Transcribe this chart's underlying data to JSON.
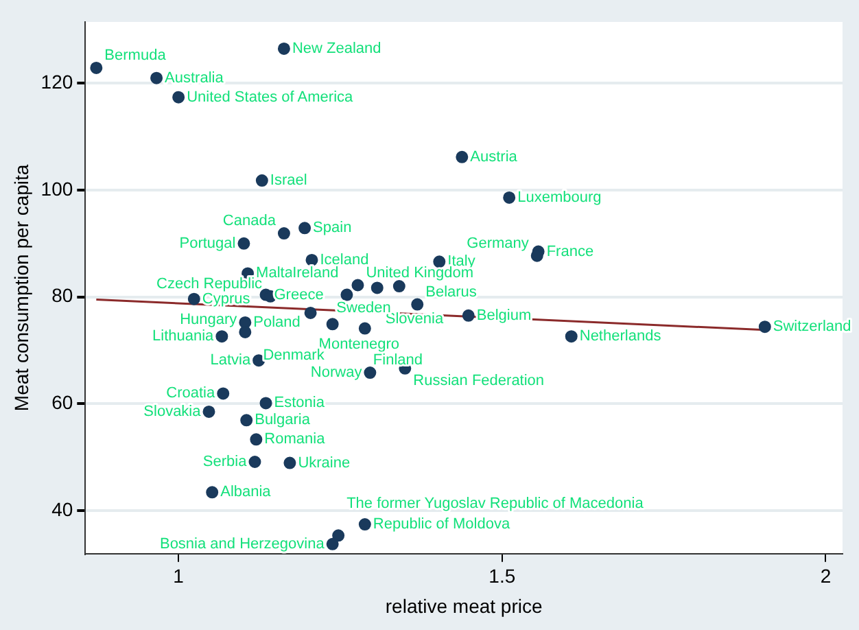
{
  "chart_data": {
    "type": "scatter",
    "xlabel": "relative meat price",
    "ylabel": "Meat consumption per capita",
    "xlim": [
      0.856,
      2.026
    ],
    "ylim": [
      31.9,
      131.5
    ],
    "xticks": [
      1,
      1.5,
      2
    ],
    "yticks": [
      40,
      60,
      80,
      100,
      120
    ],
    "grid": "y",
    "legend": false,
    "marker": "circle",
    "series": [
      {
        "color": "#1a3a5c",
        "x": [
          0.873,
          0.966,
          1.0,
          1.163,
          1.129,
          1.438,
          1.511,
          1.195,
          1.163,
          1.101,
          1.206,
          1.403,
          1.556,
          1.554,
          1.107,
          1.277,
          1.307,
          1.341,
          1.024,
          1.135,
          1.142,
          1.26,
          1.369,
          1.204,
          1.448,
          1.906,
          1.607,
          1.103,
          1.103,
          1.067,
          1.238,
          1.288,
          1.124,
          1.35,
          1.296,
          1.069,
          1.135,
          1.047,
          1.105,
          1.12,
          1.118,
          1.172,
          1.052,
          1.288,
          1.247,
          1.238
        ],
        "values": [
          122.9,
          121.0,
          117.4,
          126.5,
          101.8,
          106.2,
          98.6,
          92.9,
          91.9,
          90.0,
          86.9,
          86.6,
          88.5,
          87.7,
          84.4,
          82.2,
          81.7,
          82.0,
          79.6,
          80.4,
          80.1,
          80.4,
          78.6,
          77.0,
          76.5,
          74.4,
          72.6,
          75.2,
          73.4,
          72.6,
          74.9,
          74.1,
          68.1,
          66.6,
          65.8,
          61.9,
          60.1,
          58.5,
          56.9,
          53.3,
          49.1,
          48.9,
          43.4,
          37.4,
          35.3,
          33.7
        ]
      },
      {
        "type": "line",
        "marker": "none",
        "color": "#8b2a2a",
        "x": [
          0.873,
          1.906
        ],
        "values": [
          79.5,
          73.8
        ]
      }
    ],
    "annotations": [
      {
        "text": "Bermuda",
        "x": 0.873,
        "y": 122.9
      },
      {
        "text": "Australia",
        "x": 0.966,
        "y": 121.0
      },
      {
        "text": "United States of America",
        "x": 1.0,
        "y": 117.4
      },
      {
        "text": "New Zealand",
        "x": 1.163,
        "y": 126.5
      },
      {
        "text": "Israel",
        "x": 1.129,
        "y": 101.8
      },
      {
        "text": "Austria",
        "x": 1.438,
        "y": 106.2
      },
      {
        "text": "Luxembourg",
        "x": 1.511,
        "y": 98.6
      },
      {
        "text": "Spain",
        "x": 1.195,
        "y": 92.9
      },
      {
        "text": "Canada",
        "x": 1.163,
        "y": 91.9
      },
      {
        "text": "Portugal",
        "x": 1.101,
        "y": 90.0
      },
      {
        "text": "Iceland",
        "x": 1.206,
        "y": 86.9
      },
      {
        "text": "Italy",
        "x": 1.403,
        "y": 86.6
      },
      {
        "text": "France",
        "x": 1.556,
        "y": 88.5
      },
      {
        "text": "Germany",
        "x": 1.554,
        "y": 87.7
      },
      {
        "text": "Malta",
        "x": 1.107,
        "y": 84.4
      },
      {
        "text": "United Kingdom",
        "x": 1.277,
        "y": 82.2
      },
      {
        "text": "Slovenia",
        "x": 1.307,
        "y": 81.7
      },
      {
        "text": "Sweden",
        "x": 1.341,
        "y": 82.0
      },
      {
        "text": "Cyprus",
        "x": 1.024,
        "y": 79.6
      },
      {
        "text": "Greece",
        "x": 1.135,
        "y": 80.4
      },
      {
        "text": "Czech Republic",
        "x": 1.142,
        "y": 80.1
      },
      {
        "text": "Ireland",
        "x": 1.26,
        "y": 80.4
      },
      {
        "text": "Belarus",
        "x": 1.369,
        "y": 78.6
      },
      {
        "text": "Montenegro",
        "x": 1.204,
        "y": 77.0
      },
      {
        "text": "Belgium",
        "x": 1.448,
        "y": 76.5
      },
      {
        "text": "Switzerland",
        "x": 1.906,
        "y": 74.4
      },
      {
        "text": "Netherlands",
        "x": 1.607,
        "y": 72.6
      },
      {
        "text": "Poland",
        "x": 1.103,
        "y": 75.2
      },
      {
        "text": "Hungary",
        "x": 1.103,
        "y": 73.4
      },
      {
        "text": "Lithuania",
        "x": 1.067,
        "y": 72.6
      },
      {
        "text": "Denmark",
        "x": 1.238,
        "y": 74.9
      },
      {
        "text": "Finland",
        "x": 1.288,
        "y": 74.1
      },
      {
        "text": "Latvia",
        "x": 1.124,
        "y": 68.1
      },
      {
        "text": "Russian Federation",
        "x": 1.35,
        "y": 66.6
      },
      {
        "text": "Norway",
        "x": 1.296,
        "y": 65.8
      },
      {
        "text": "Croatia",
        "x": 1.069,
        "y": 61.9
      },
      {
        "text": "Estonia",
        "x": 1.135,
        "y": 60.1
      },
      {
        "text": "Slovakia",
        "x": 1.047,
        "y": 58.5
      },
      {
        "text": "Bulgaria",
        "x": 1.105,
        "y": 56.9
      },
      {
        "text": "Romania",
        "x": 1.12,
        "y": 53.3
      },
      {
        "text": "Serbia",
        "x": 1.118,
        "y": 49.1
      },
      {
        "text": "Ukraine",
        "x": 1.172,
        "y": 48.9
      },
      {
        "text": "Albania",
        "x": 1.052,
        "y": 43.4
      },
      {
        "text": "Republic of Moldova",
        "x": 1.288,
        "y": 37.4
      },
      {
        "text": "The former Yugoslav Republic of Macedonia",
        "x": 1.247,
        "y": 35.3
      },
      {
        "text": "Bosnia and Herzegovina",
        "x": 1.238,
        "y": 33.7
      }
    ]
  }
}
